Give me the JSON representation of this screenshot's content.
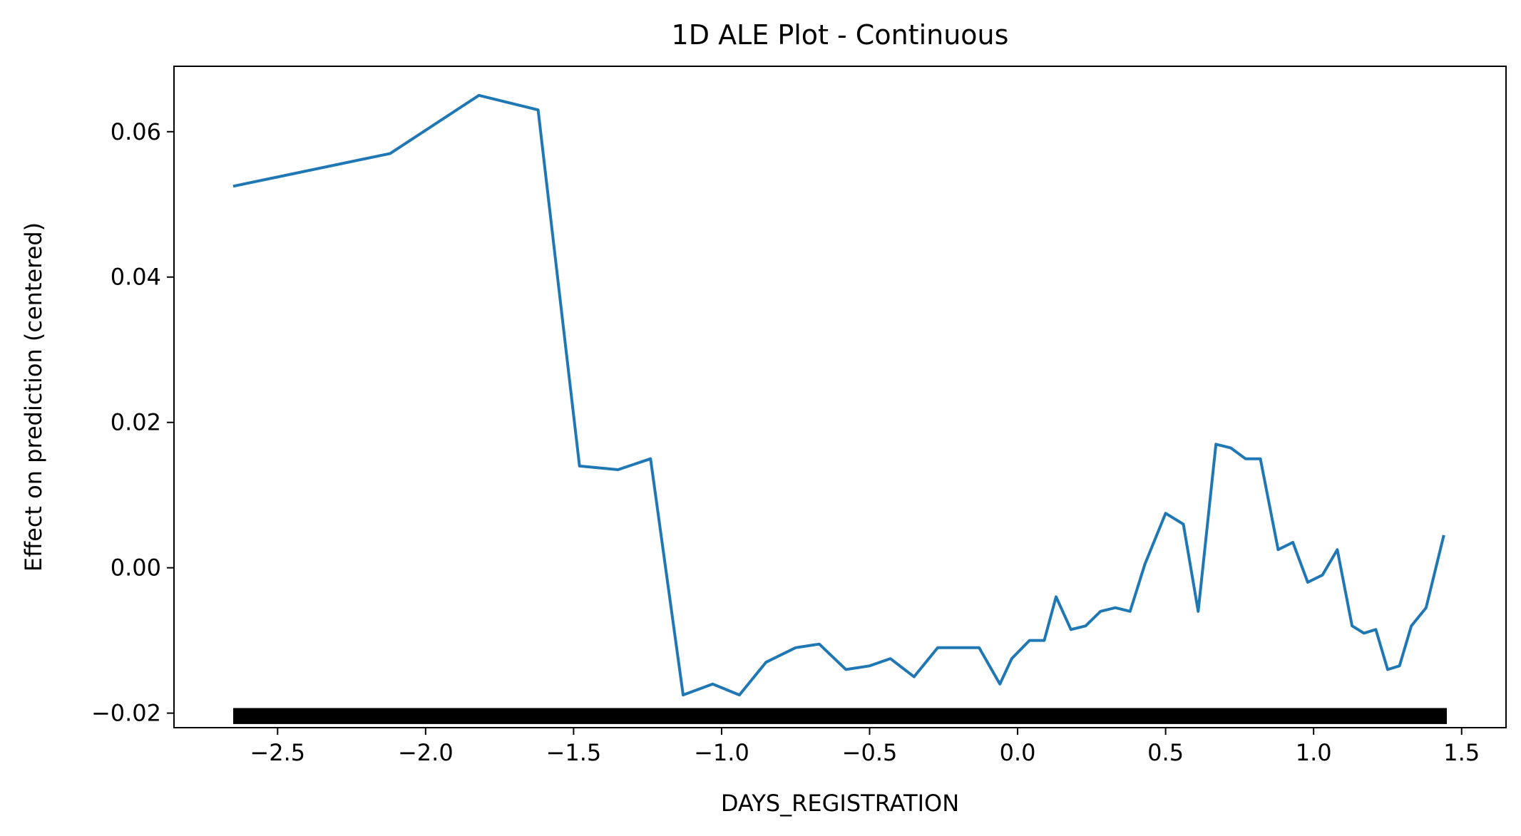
{
  "chart_data": {
    "type": "line",
    "title": "1D ALE Plot - Continuous",
    "xlabel": "DAYS_REGISTRATION",
    "ylabel": "Effect on prediction (centered)",
    "xlim": [
      -2.85,
      1.65
    ],
    "ylim": [
      -0.022,
      0.069
    ],
    "x_ticks": [
      -2.5,
      -2.0,
      -1.5,
      -1.0,
      -0.5,
      0.0,
      0.5,
      1.0,
      1.5
    ],
    "x_tick_labels": [
      "−2.5",
      "−2.0",
      "−1.5",
      "−1.0",
      "−0.5",
      "0.0",
      "0.5",
      "1.0",
      "1.5"
    ],
    "y_ticks": [
      -0.02,
      0.0,
      0.02,
      0.04,
      0.06
    ],
    "y_tick_labels": [
      "−0.02",
      "0.00",
      "0.02",
      "0.04",
      "0.06"
    ],
    "grid": false,
    "line_color": "#1f77b4",
    "rug_color": "#000000",
    "rug_range": [
      -2.65,
      1.45
    ],
    "series": [
      {
        "x": [
          -2.65,
          -2.12,
          -1.82,
          -1.62,
          -1.48,
          -1.35,
          -1.24,
          -1.13,
          -1.03,
          -0.94,
          -0.85,
          -0.75,
          -0.67,
          -0.58,
          -0.5,
          -0.43,
          -0.35,
          -0.27,
          -0.2,
          -0.13,
          -0.06,
          -0.02,
          0.04,
          0.09,
          0.13,
          0.18,
          0.23,
          0.28,
          0.33,
          0.38,
          0.43,
          0.5,
          0.56,
          0.61,
          0.67,
          0.72,
          0.77,
          0.82,
          0.88,
          0.93,
          0.98,
          1.03,
          1.08,
          1.13,
          1.17,
          1.21,
          1.25,
          1.29,
          1.33,
          1.38,
          1.44
        ],
        "y": [
          0.0525,
          0.057,
          0.065,
          0.063,
          0.014,
          0.0135,
          0.015,
          -0.0175,
          -0.016,
          -0.0175,
          -0.013,
          -0.011,
          -0.0105,
          -0.014,
          -0.0135,
          -0.0125,
          -0.015,
          -0.011,
          -0.011,
          -0.011,
          -0.016,
          -0.0125,
          -0.01,
          -0.01,
          -0.004,
          -0.0085,
          -0.008,
          -0.006,
          -0.0055,
          -0.006,
          0.0005,
          0.0075,
          0.006,
          -0.006,
          0.017,
          0.0165,
          0.015,
          0.015,
          0.0025,
          0.0035,
          -0.002,
          -0.001,
          0.0025,
          -0.008,
          -0.009,
          -0.0085,
          -0.014,
          -0.0135,
          -0.008,
          -0.0055,
          0.0045
        ]
      }
    ]
  }
}
